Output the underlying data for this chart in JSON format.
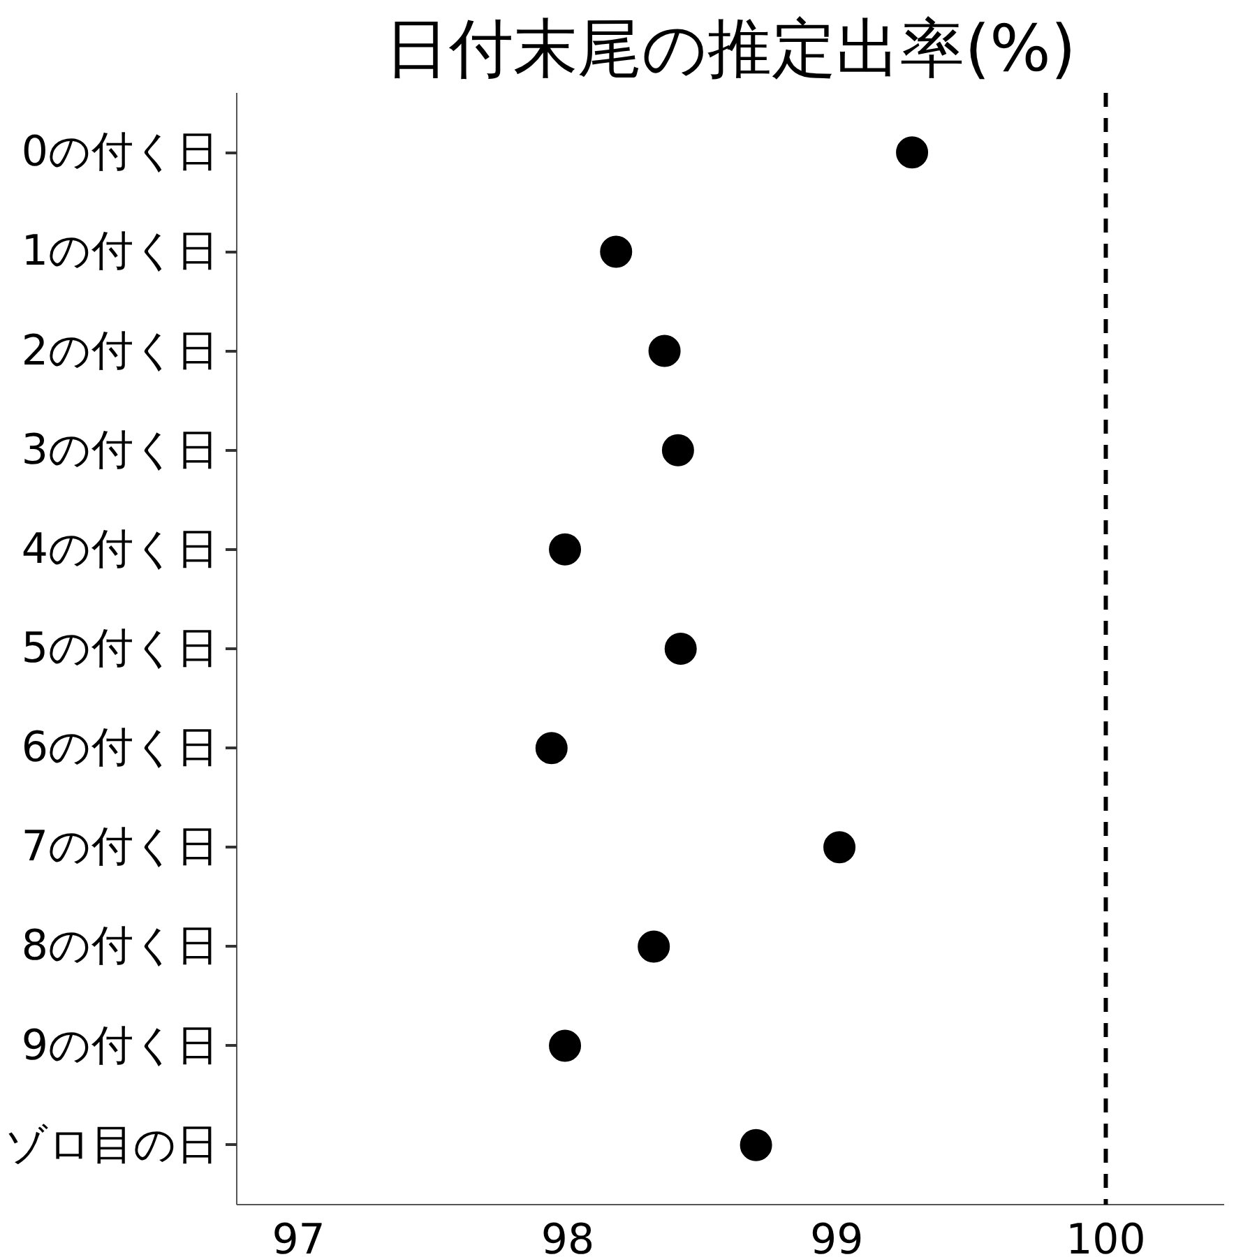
{
  "chart_data": {
    "type": "scatter",
    "orientation": "horizontal",
    "title": "日付末尾の推定出率(%)",
    "categories": [
      "0の付く日",
      "1の付く日",
      "2の付く日",
      "3の付く日",
      "4の付く日",
      "5の付く日",
      "6の付く日",
      "7の付く日",
      "8の付く日",
      "9の付く日",
      "ゾロ目の日"
    ],
    "values": [
      99.28,
      98.18,
      98.36,
      98.41,
      97.99,
      98.42,
      97.94,
      99.01,
      98.32,
      97.99,
      98.7
    ],
    "color": "#000000",
    "marker": "circle",
    "grid": false,
    "xlim": [
      96.77,
      100.44
    ],
    "xticks": [
      97,
      98,
      99,
      100
    ],
    "ref_lines": [
      {
        "axis": "x",
        "value": 100,
        "color": "#000000",
        "line_style": "dashed"
      }
    ]
  }
}
